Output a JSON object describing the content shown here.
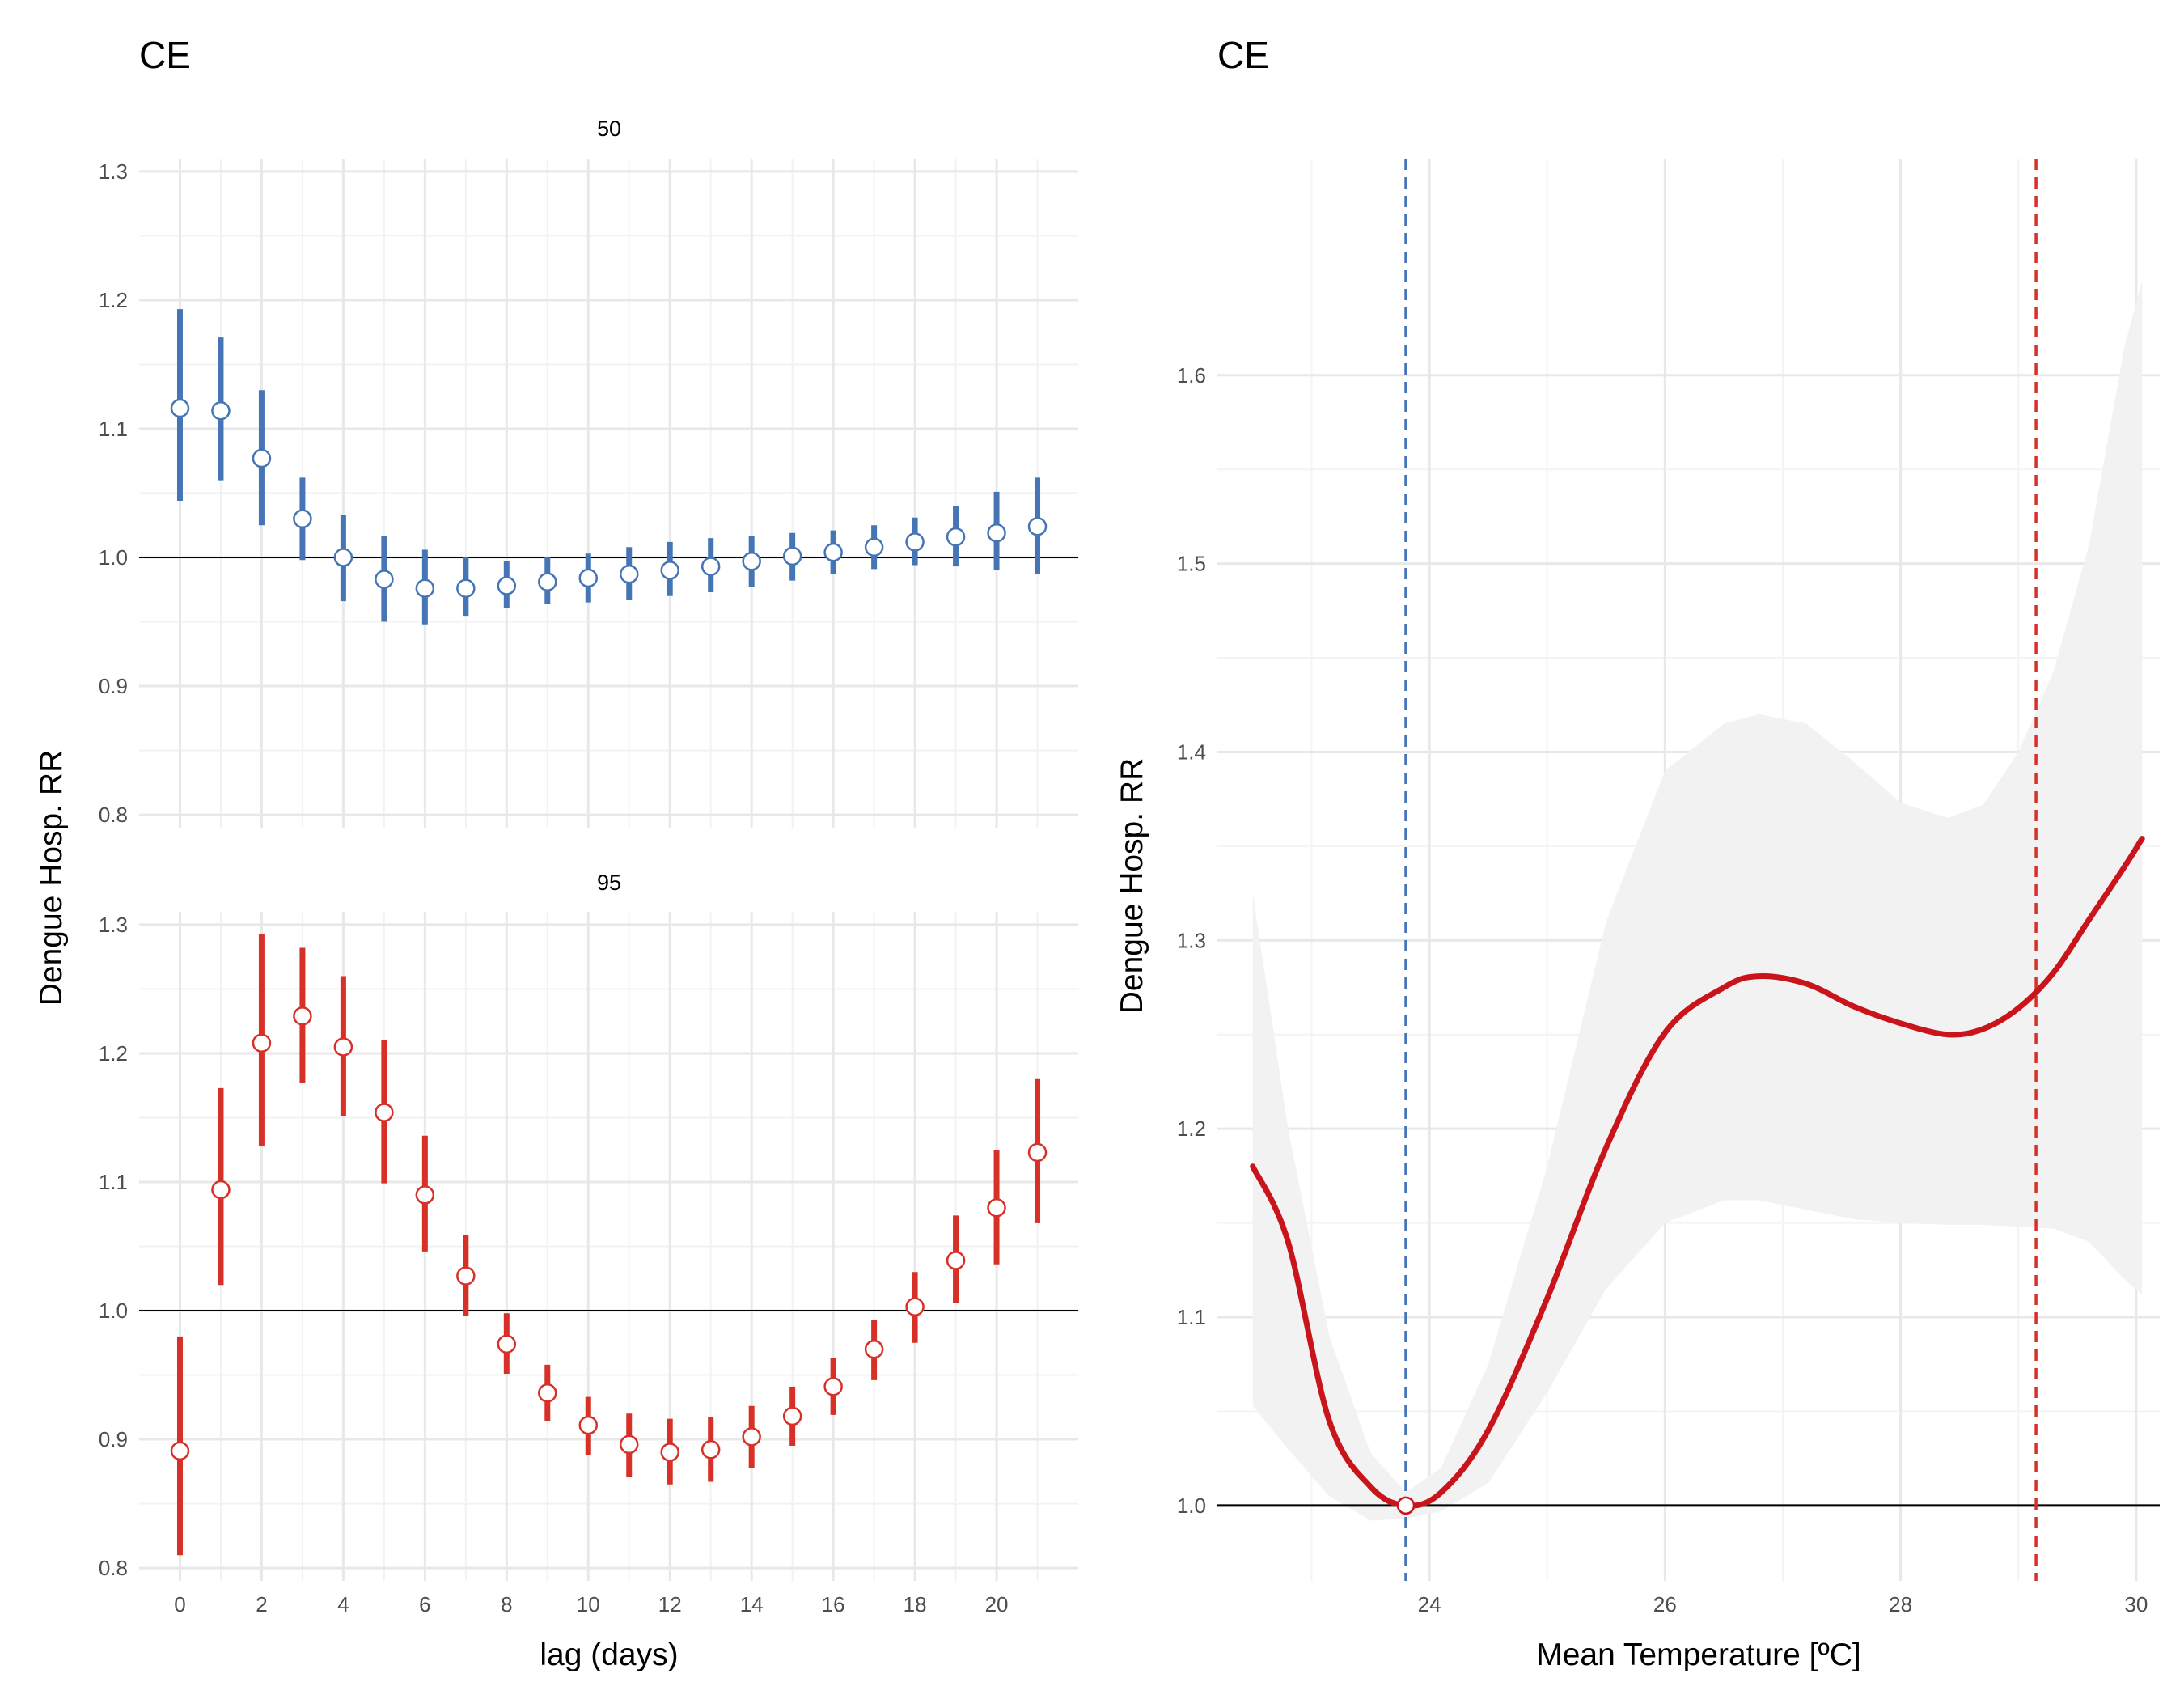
{
  "chart_data": [
    {
      "type": "scatter",
      "title": "CE",
      "facet": "50",
      "xlabel": "lag (days)",
      "ylabel": "Dengue Hosp. RR",
      "xlim": [
        -1,
        22
      ],
      "ylim": [
        0.79,
        1.31
      ],
      "x_ticks": [
        0,
        2,
        4,
        6,
        8,
        10,
        12,
        14,
        16,
        18,
        20
      ],
      "y_ticks": [
        0.8,
        0.9,
        1.0,
        1.1,
        1.2,
        1.3
      ],
      "reference_line": 1.0,
      "color": "#4575b4",
      "grid": true,
      "lag": [
        0,
        1,
        2,
        3,
        4,
        5,
        6,
        7,
        8,
        9,
        10,
        11,
        12,
        13,
        14,
        15,
        16,
        17,
        18,
        19,
        20,
        21
      ],
      "rr": [
        1.116,
        1.114,
        1.077,
        1.03,
        1.0,
        0.983,
        0.976,
        0.976,
        0.978,
        0.981,
        0.984,
        0.987,
        0.99,
        0.993,
        0.997,
        1.001,
        1.004,
        1.008,
        1.012,
        1.016,
        1.019,
        1.024
      ],
      "lower": [
        1.044,
        1.06,
        1.025,
        0.998,
        0.966,
        0.95,
        0.948,
        0.954,
        0.961,
        0.964,
        0.965,
        0.967,
        0.97,
        0.973,
        0.977,
        0.982,
        0.987,
        0.991,
        0.994,
        0.993,
        0.99,
        0.987
      ],
      "upper": [
        1.193,
        1.171,
        1.13,
        1.062,
        1.033,
        1.017,
        1.006,
        1.0,
        0.997,
        1.0,
        1.003,
        1.008,
        1.012,
        1.015,
        1.017,
        1.019,
        1.021,
        1.025,
        1.031,
        1.04,
        1.051,
        1.062
      ]
    },
    {
      "type": "scatter",
      "title": "",
      "facet": "95",
      "xlabel": "lag (days)",
      "ylabel": "Dengue Hosp. RR",
      "xlim": [
        -1,
        22
      ],
      "ylim": [
        0.79,
        1.31
      ],
      "x_ticks": [
        0,
        2,
        4,
        6,
        8,
        10,
        12,
        14,
        16,
        18,
        20
      ],
      "y_ticks": [
        0.8,
        0.9,
        1.0,
        1.1,
        1.2,
        1.3
      ],
      "reference_line": 1.0,
      "color": "#d73027",
      "grid": true,
      "lag": [
        0,
        1,
        2,
        3,
        4,
        5,
        6,
        7,
        8,
        9,
        10,
        11,
        12,
        13,
        14,
        15,
        16,
        17,
        18,
        19,
        20,
        21
      ],
      "rr": [
        0.891,
        1.094,
        1.208,
        1.229,
        1.205,
        1.154,
        1.09,
        1.027,
        0.974,
        0.936,
        0.911,
        0.896,
        0.89,
        0.892,
        0.902,
        0.918,
        0.941,
        0.97,
        1.003,
        1.039,
        1.08,
        1.123
      ],
      "lower": [
        0.81,
        1.02,
        1.128,
        1.177,
        1.151,
        1.099,
        1.046,
        0.996,
        0.951,
        0.914,
        0.888,
        0.871,
        0.865,
        0.867,
        0.878,
        0.895,
        0.919,
        0.946,
        0.975,
        1.006,
        1.036,
        1.068
      ],
      "upper": [
        0.98,
        1.173,
        1.293,
        1.282,
        1.26,
        1.21,
        1.136,
        1.059,
        0.998,
        0.958,
        0.933,
        0.92,
        0.916,
        0.917,
        0.926,
        0.941,
        0.963,
        0.993,
        1.03,
        1.074,
        1.125,
        1.18
      ]
    },
    {
      "type": "line",
      "title": "CE",
      "xlabel": "Mean Temperature [ºC]",
      "ylabel": "Dengue Hosp. RR",
      "xlim": [
        22.2,
        30.2
      ],
      "ylim": [
        0.96,
        1.715
      ],
      "x_ticks": [
        24,
        26,
        28,
        30
      ],
      "y_ticks": [
        1.0,
        1.1,
        1.2,
        1.3,
        1.4,
        1.5,
        1.6
      ],
      "reference_line": 1.0,
      "grid": true,
      "line_color": "#c9141c",
      "band_color": "#f2f2f2",
      "vlines": [
        {
          "x": 23.8,
          "color": "#4575b4"
        },
        {
          "x": 29.15,
          "color": "#d73027"
        }
      ],
      "reference_point": {
        "x": 23.8,
        "y": 1.0
      },
      "x": [
        22.5,
        22.8,
        23.15,
        23.5,
        23.8,
        24.1,
        24.5,
        25.0,
        25.5,
        26.0,
        26.5,
        26.8,
        27.2,
        27.6,
        28.0,
        28.4,
        28.7,
        29.0,
        29.3,
        29.6,
        29.9,
        30.05
      ],
      "y": [
        1.18,
        1.14,
        1.045,
        1.01,
        1.0,
        1.007,
        1.04,
        1.11,
        1.19,
        1.251,
        1.275,
        1.281,
        1.277,
        1.265,
        1.256,
        1.25,
        1.253,
        1.264,
        1.283,
        1.311,
        1.339,
        1.354
      ],
      "lower": [
        1.053,
        1.03,
        1.005,
        0.992,
        0.993,
        0.997,
        1.012,
        1.06,
        1.115,
        1.15,
        1.162,
        1.162,
        1.157,
        1.152,
        1.15,
        1.149,
        1.149,
        1.148,
        1.147,
        1.14,
        1.12,
        1.112
      ],
      "upper": [
        1.325,
        1.2,
        1.09,
        1.028,
        1.007,
        1.02,
        1.075,
        1.18,
        1.31,
        1.39,
        1.415,
        1.42,
        1.415,
        1.395,
        1.373,
        1.365,
        1.372,
        1.4,
        1.443,
        1.51,
        1.615,
        1.65
      ]
    }
  ]
}
